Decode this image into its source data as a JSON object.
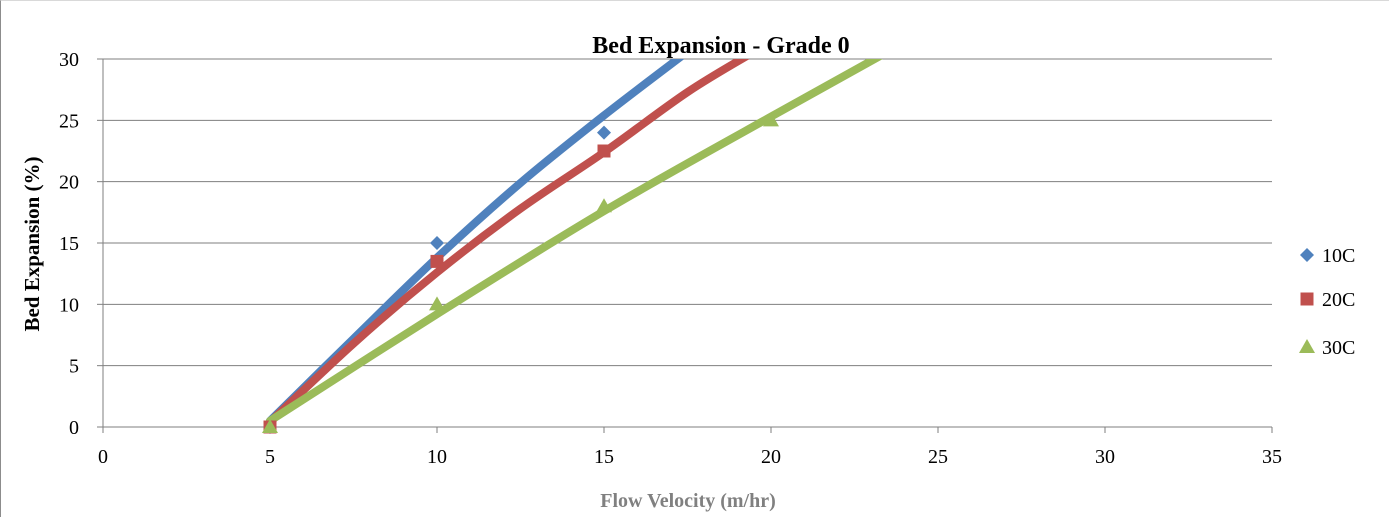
{
  "chart_data": {
    "type": "scatter",
    "title": "Bed Expansion - Grade 0",
    "xlabel": "Flow Velocity (m/hr)",
    "ylabel": "Bed Expansion (%)",
    "xlim": [
      0,
      35
    ],
    "ylim": [
      0,
      30
    ],
    "x_ticks": [
      0,
      5,
      10,
      15,
      20,
      25,
      30,
      35
    ],
    "y_ticks": [
      0,
      5,
      10,
      15,
      20,
      25,
      30
    ],
    "grid": {
      "horizontal": true,
      "vertical": false
    },
    "legend_position": "right",
    "series": [
      {
        "name": "10C",
        "color": "#4F81BD",
        "marker": "diamond",
        "points": [
          [
            5,
            0
          ],
          [
            10,
            15
          ],
          [
            15,
            24
          ]
        ],
        "trendline": [
          [
            5,
            0.5
          ],
          [
            7.5,
            7.2
          ],
          [
            10,
            13.8
          ],
          [
            12.5,
            19.9
          ],
          [
            15,
            25.4
          ],
          [
            17.5,
            30.6
          ]
        ]
      },
      {
        "name": "20C",
        "color": "#C0504D",
        "marker": "square",
        "points": [
          [
            5,
            0
          ],
          [
            10,
            13.5
          ],
          [
            15,
            22.5
          ]
        ],
        "trendline": [
          [
            5,
            0.4
          ],
          [
            7.5,
            6.8
          ],
          [
            10,
            12.6
          ],
          [
            12.5,
            17.8
          ],
          [
            15,
            22.4
          ],
          [
            17.5,
            27.3
          ],
          [
            19.5,
            30.6
          ]
        ]
      },
      {
        "name": "30C",
        "color": "#9BBB59",
        "marker": "triangle",
        "points": [
          [
            5,
            0
          ],
          [
            10,
            10
          ],
          [
            15,
            18
          ],
          [
            20,
            25
          ]
        ],
        "trendline": [
          [
            5,
            0.5
          ],
          [
            10,
            9.2
          ],
          [
            15,
            17.6
          ],
          [
            20,
            25.3
          ],
          [
            23.5,
            30.6
          ]
        ]
      }
    ]
  }
}
